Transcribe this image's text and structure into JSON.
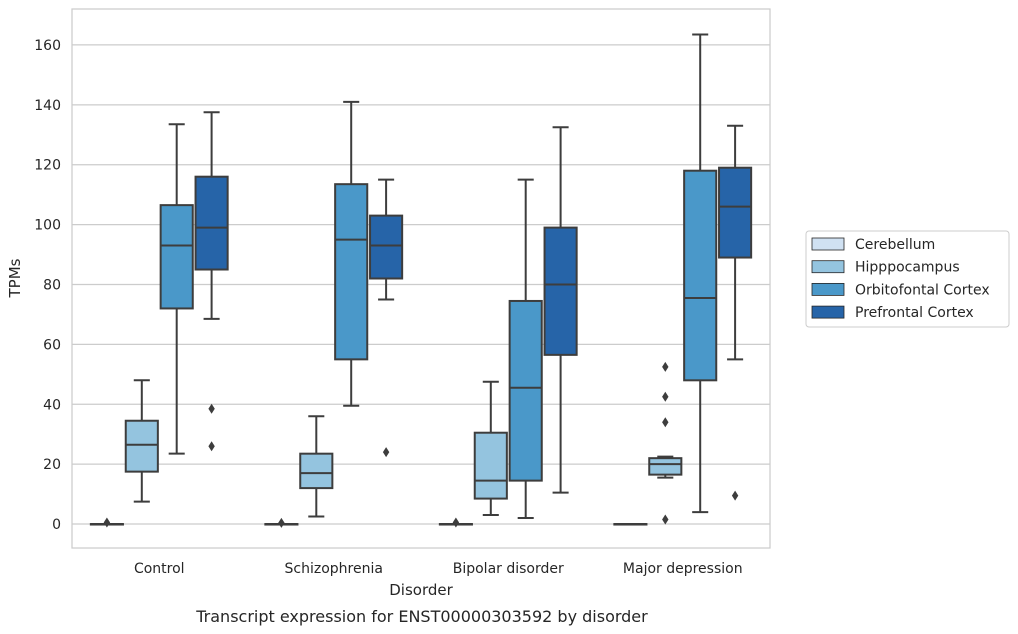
{
  "chart_data": {
    "type": "box",
    "caption": "Transcript expression for ENST00000303592 by disorder",
    "xlabel": "Disorder",
    "ylabel": "TPMs",
    "ylim": [
      -8,
      172
    ],
    "yticks": [
      0,
      20,
      40,
      60,
      80,
      100,
      120,
      140,
      160
    ],
    "grid": true,
    "legend_position": "right",
    "categories": [
      "Control",
      "Schizophrenia",
      "Bipolar disorder",
      "Major depression"
    ],
    "series": [
      {
        "name": "Cerebellum",
        "color": "#d0e1f2",
        "boxes": [
          {
            "whislo": 0,
            "q1": 0,
            "med": 0,
            "q3": 0,
            "whishi": 0,
            "fliers": [
              0.5
            ]
          },
          {
            "whislo": 0,
            "q1": 0,
            "med": 0,
            "q3": 0,
            "whishi": 0,
            "fliers": [
              0.4
            ]
          },
          {
            "whislo": 0,
            "q1": 0,
            "med": 0,
            "q3": 0,
            "whishi": 0,
            "fliers": [
              0.5
            ]
          },
          {
            "whislo": 0,
            "q1": 0,
            "med": 0,
            "q3": 0,
            "whishi": 0,
            "fliers": []
          }
        ]
      },
      {
        "name": "Hipppocampus",
        "color": "#94c4df",
        "boxes": [
          {
            "whislo": 7.5,
            "q1": 17.5,
            "med": 26.5,
            "q3": 34.5,
            "whishi": 48,
            "fliers": []
          },
          {
            "whislo": 2.5,
            "q1": 12,
            "med": 17,
            "q3": 23.5,
            "whishi": 36,
            "fliers": []
          },
          {
            "whislo": 3,
            "q1": 8.5,
            "med": 14.5,
            "q3": 30.5,
            "whishi": 47.5,
            "fliers": []
          },
          {
            "whislo": 15.5,
            "q1": 16.5,
            "med": 20,
            "q3": 22,
            "whishi": 22.5,
            "fliers": [
              1.5,
              34,
              42.5,
              52.5
            ]
          }
        ]
      },
      {
        "name": "Orbitofontal Cortex",
        "color": "#4a98c9",
        "boxes": [
          {
            "whislo": 23.5,
            "q1": 72,
            "med": 93,
            "q3": 106.5,
            "whishi": 133.5,
            "fliers": []
          },
          {
            "whislo": 39.5,
            "q1": 55,
            "med": 95,
            "q3": 113.5,
            "whishi": 141,
            "fliers": []
          },
          {
            "whislo": 2,
            "q1": 14.5,
            "med": 45.5,
            "q3": 74.5,
            "whishi": 115,
            "fliers": []
          },
          {
            "whislo": 4,
            "q1": 48,
            "med": 75.5,
            "q3": 118,
            "whishi": 163.5,
            "fliers": []
          }
        ]
      },
      {
        "name": "Prefrontal Cortex",
        "color": "#2664a8",
        "boxes": [
          {
            "whislo": 68.5,
            "q1": 85,
            "med": 99,
            "q3": 116,
            "whishi": 137.5,
            "fliers": [
              26,
              38.5
            ]
          },
          {
            "whislo": 75,
            "q1": 82,
            "med": 93,
            "q3": 103,
            "whishi": 115,
            "fliers": [
              24
            ]
          },
          {
            "whislo": 10.5,
            "q1": 56.5,
            "med": 80,
            "q3": 99,
            "whishi": 132.5,
            "fliers": []
          },
          {
            "whislo": 55,
            "q1": 89,
            "med": 106,
            "q3": 119,
            "whishi": 133,
            "fliers": [
              9.5
            ]
          }
        ]
      }
    ]
  }
}
